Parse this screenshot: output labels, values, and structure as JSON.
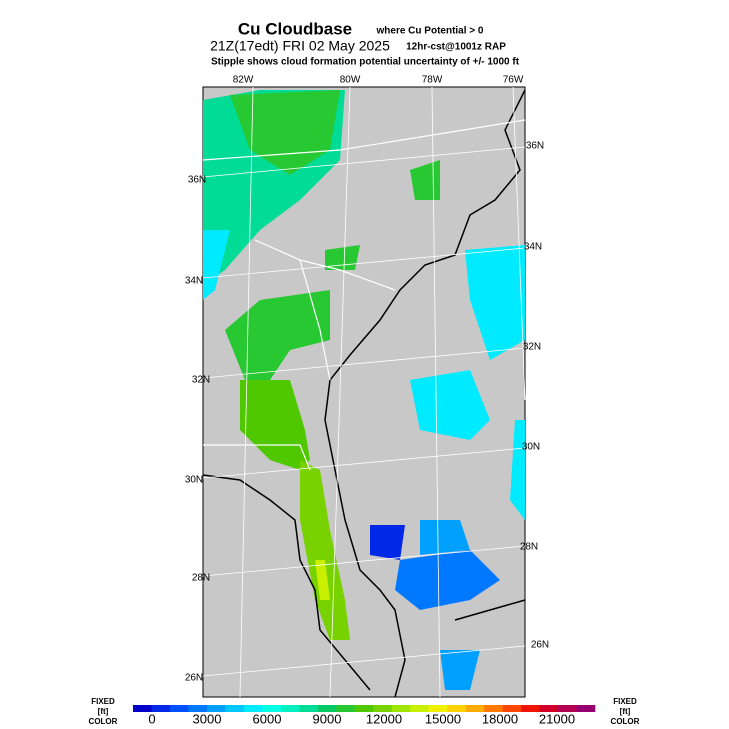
{
  "header": {
    "title": "Cu Cloudbase",
    "title_note": "where Cu Potential > 0",
    "valid": "21Z(17edt) FRI 02 May 2025",
    "model": "12hr-cst@1001z RAP",
    "subtitle": "Stipple shows cloud formation potential uncertainty of +/-  1000 ft"
  },
  "map": {
    "lon_labels": [
      "82W",
      "80W",
      "78W",
      "76W"
    ],
    "lat_labels_right": [
      "36N",
      "34N",
      "32N",
      "30N",
      "28N",
      "26N"
    ],
    "lat_labels_left": [
      "36N",
      "34N",
      "32N",
      "30N",
      "28N",
      "26N"
    ]
  },
  "colorbar": {
    "colors": [
      "#0000c8",
      "#0028e6",
      "#0050ff",
      "#0078ff",
      "#00a0ff",
      "#00c8ff",
      "#00ebff",
      "#00ffe6",
      "#00f0c0",
      "#00dc96",
      "#00c864",
      "#28c832",
      "#50c800",
      "#78d200",
      "#a0e600",
      "#c8f000",
      "#f0f000",
      "#ffd200",
      "#ffaa00",
      "#ff7800",
      "#ff4600",
      "#f01400",
      "#d20028",
      "#b40050",
      "#960070"
    ],
    "labels": [
      0,
      3000,
      6000,
      9000,
      12000,
      15000,
      18000,
      21000
    ],
    "left_note": [
      "FIXED",
      "[ft]",
      "COLOR"
    ],
    "right_note": [
      "FIXED",
      "[ft]",
      "COLOR"
    ]
  }
}
